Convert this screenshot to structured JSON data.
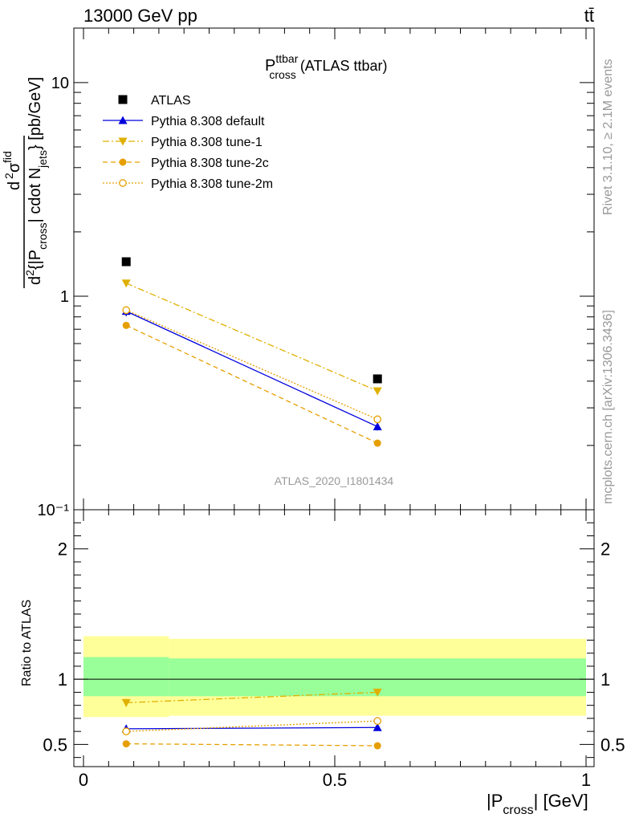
{
  "header": {
    "left": "13000 GeV pp",
    "right": "tt̄"
  },
  "side_labels": {
    "rivet": "Rivet 3.1.10, ≥ 2.1M events",
    "mcplots": "mcplots.cern.ch [arXiv:1306.3436]"
  },
  "main_title": {
    "base": "P",
    "sup": "ttbar",
    "sub": "cross",
    "suffix": " (ATLAS ttbar)"
  },
  "watermark": "ATLAS_2020_I1801434",
  "y_axis_label": {
    "num_d": "d",
    "num_2": "2",
    "num_sigma": "σ",
    "num_sup": "fid",
    "den_d": "d",
    "den_2": "2",
    "den_body": "{|P",
    "den_sub": "cross",
    "den_mid": "| cdot N",
    "den_sub2": "jets",
    "den_close": "} [pb/GeV]"
  },
  "x_axis_label": {
    "pre": "|P",
    "sub": "cross",
    "post": "| [GeV]"
  },
  "ratio_label": "Ratio to ATLAS",
  "legend": [
    {
      "label": "ATLAS"
    },
    {
      "label": "Pythia 8.308 default"
    },
    {
      "label": "Pythia 8.308 tune-1"
    },
    {
      "label": "Pythia 8.308 tune-2c"
    },
    {
      "label": "Pythia 8.308 tune-2m"
    }
  ],
  "colors": {
    "atlas": "#000000",
    "default": "#0000dd",
    "orange": "#e69f00",
    "tune1": "#e0b000",
    "band_inner": "#99ff99",
    "band_outer": "#ffff99"
  },
  "chart_data": [
    {
      "type": "scatter",
      "name": "main",
      "y_scale": "log",
      "xlim": [
        0,
        1
      ],
      "ylim": [
        0.1,
        18
      ],
      "y_ticks": [
        {
          "v": 10,
          "label": "10"
        },
        {
          "v": 1,
          "label": "1"
        },
        {
          "v": 0.1,
          "label": "10⁻¹"
        }
      ],
      "bins": [
        0,
        0.17,
        1
      ],
      "x": [
        0.085,
        0.585
      ],
      "series": [
        {
          "name": "ATLAS",
          "style": "atlas",
          "values": [
            1.45,
            0.41
          ]
        },
        {
          "name": "Pythia 8.308 default",
          "style": "default",
          "values": [
            0.85,
            0.245
          ],
          "err": [
            0.045,
            0.01
          ]
        },
        {
          "name": "Pythia 8.308 tune-1",
          "style": "tune1",
          "values": [
            1.15,
            0.36
          ]
        },
        {
          "name": "Pythia 8.308 tune-2c",
          "style": "tune2c",
          "values": [
            0.73,
            0.205
          ]
        },
        {
          "name": "Pythia 8.308 tune-2m",
          "style": "tune2m",
          "values": [
            0.86,
            0.265
          ]
        }
      ]
    },
    {
      "type": "scatter",
      "name": "ratio",
      "xlim": [
        0,
        1
      ],
      "ylim": [
        0.33,
        2.3
      ],
      "y_ticks": [
        {
          "v": 2,
          "label": "2"
        },
        {
          "v": 1,
          "label": "1"
        },
        {
          "v": 0.5,
          "label": "0.5"
        }
      ],
      "x_ticks": [
        {
          "v": 0,
          "label": "0"
        },
        {
          "v": 0.5,
          "label": "0.5"
        },
        {
          "v": 1,
          "label": "1"
        }
      ],
      "x": [
        0.085,
        0.585
      ],
      "band_inner": [
        [
          0.87,
          1.17
        ],
        [
          0.87,
          1.16
        ]
      ],
      "band_outer": [
        [
          0.71,
          1.33
        ],
        [
          0.72,
          1.31
        ]
      ],
      "series": [
        {
          "name": "Pythia 8.308 default",
          "style": "default",
          "values": [
            0.62,
            0.63
          ],
          "err": [
            0.03,
            0.02
          ]
        },
        {
          "name": "Pythia 8.308 tune-1",
          "style": "tune1",
          "values": [
            0.82,
            0.9
          ],
          "err": [
            0.03,
            0.02
          ]
        },
        {
          "name": "Pythia 8.308 tune-2c",
          "style": "tune2c",
          "values": [
            0.505,
            0.49
          ],
          "err": [
            0.025,
            0.02
          ]
        },
        {
          "name": "Pythia 8.308 tune-2m",
          "style": "tune2m",
          "values": [
            0.6,
            0.68
          ],
          "err": [
            0.03,
            0.02
          ]
        }
      ]
    }
  ]
}
